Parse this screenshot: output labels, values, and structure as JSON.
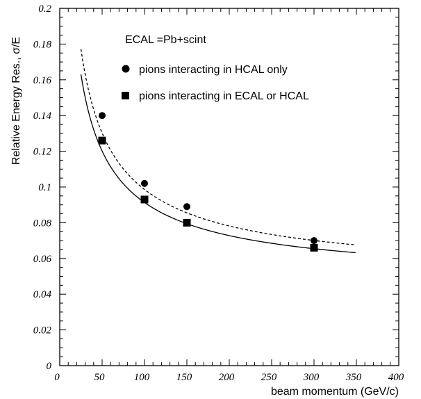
{
  "chart_data": {
    "type": "scatter",
    "xlabel": "beam momentum (GeV/c)",
    "ylabel": "Relative Energy Res., σ/E",
    "xlim": [
      0,
      400
    ],
    "ylim": [
      0,
      0.2
    ],
    "x_ticks": [
      0,
      50,
      100,
      150,
      200,
      250,
      300,
      350,
      400
    ],
    "x_tick_labels": [
      "0",
      "50",
      "100",
      "150",
      "200",
      "250",
      "300",
      "350",
      "400"
    ],
    "y_ticks": [
      0,
      0.02,
      0.04,
      0.06,
      0.08,
      0.1,
      0.12,
      0.14,
      0.16,
      0.18,
      0.2
    ],
    "y_tick_labels": [
      "0",
      "0.02",
      "0.04",
      "0.06",
      "0.08",
      "0.1",
      "0.12",
      "0.14",
      "0.16",
      "0.18",
      "0.2"
    ],
    "annotation": "ECAL =Pb+scint",
    "legend_position": "top-right",
    "grid": false,
    "series": [
      {
        "name": "pions interacting in HCAL only",
        "marker": "circle",
        "x": [
          50,
          100,
          150,
          300
        ],
        "y": [
          0.14,
          0.102,
          0.089,
          0.07
        ],
        "fit": {
          "style": "dashed",
          "x_range": [
            25,
            350
          ],
          "a": 0.85,
          "b": 0.05
        }
      },
      {
        "name": "pions interacting in ECAL or HCAL",
        "marker": "square",
        "x": [
          50,
          100,
          150,
          300
        ],
        "y": [
          0.126,
          0.093,
          0.08,
          0.066
        ],
        "fit": {
          "style": "solid",
          "x_range": [
            25,
            350
          ],
          "a": 0.78,
          "b": 0.0475
        }
      }
    ]
  }
}
